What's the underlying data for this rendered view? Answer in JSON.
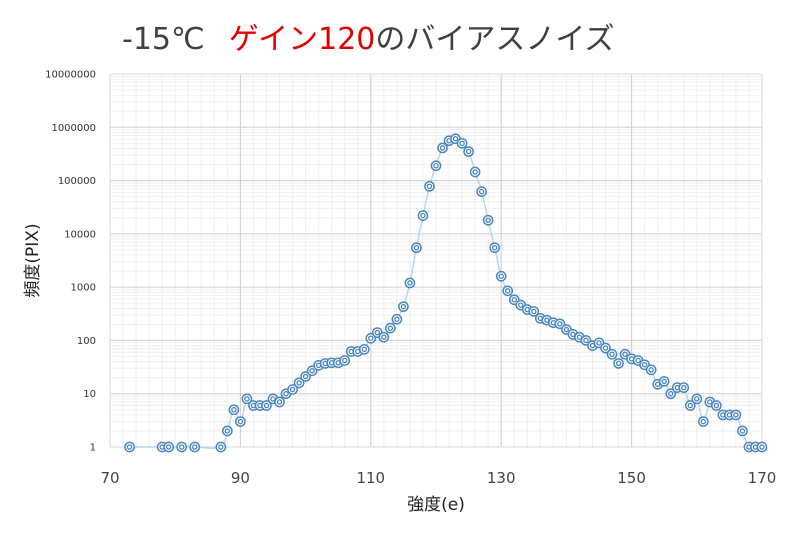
{
  "title": {
    "prefix": "-15℃",
    "highlight": "ゲイン120",
    "suffix": "のバイアスノイズ"
  },
  "chart_data": {
    "type": "scatter",
    "xlabel": "強度(e)",
    "ylabel": "頻度(PIX)",
    "xlim": [
      70,
      170
    ],
    "ylim": [
      1,
      10000000
    ],
    "yscale": "log",
    "grid": true,
    "marker": "double-circle",
    "line": "smoothed",
    "x_ticks": [
      "70",
      "90",
      "110",
      "130",
      "150",
      "170"
    ],
    "y_ticks": [
      "1",
      "10",
      "100",
      "1000",
      "10000",
      "100000",
      "1000000",
      "10000000"
    ],
    "series": [
      {
        "color": "#4a86c0",
        "points": [
          [
            73,
            1
          ],
          [
            78,
            1
          ],
          [
            79,
            1
          ],
          [
            81,
            1
          ],
          [
            83,
            1
          ],
          [
            87,
            1
          ],
          [
            88,
            2
          ],
          [
            89,
            5
          ],
          [
            90,
            3
          ],
          [
            91,
            8
          ],
          [
            92,
            6
          ],
          [
            93,
            6
          ],
          [
            94,
            6
          ],
          [
            95,
            8
          ],
          [
            96,
            7
          ],
          [
            97,
            10
          ],
          [
            98,
            12
          ],
          [
            99,
            16
          ],
          [
            100,
            21
          ],
          [
            101,
            27
          ],
          [
            102,
            34
          ],
          [
            103,
            37
          ],
          [
            104,
            38
          ],
          [
            105,
            38
          ],
          [
            106,
            42
          ],
          [
            107,
            62
          ],
          [
            108,
            62
          ],
          [
            109,
            68
          ],
          [
            110,
            110
          ],
          [
            111,
            140
          ],
          [
            112,
            115
          ],
          [
            113,
            170
          ],
          [
            114,
            250
          ],
          [
            115,
            430
          ],
          [
            116,
            1200
          ],
          [
            117,
            5500
          ],
          [
            118,
            22000
          ],
          [
            119,
            78000
          ],
          [
            120,
            190000
          ],
          [
            121,
            410000
          ],
          [
            122,
            560000
          ],
          [
            123,
            610000
          ],
          [
            124,
            500000
          ],
          [
            125,
            350000
          ],
          [
            126,
            145000
          ],
          [
            127,
            62000
          ],
          [
            128,
            18000
          ],
          [
            129,
            5500
          ],
          [
            130,
            1600
          ],
          [
            131,
            850
          ],
          [
            132,
            580
          ],
          [
            133,
            460
          ],
          [
            134,
            380
          ],
          [
            135,
            350
          ],
          [
            136,
            260
          ],
          [
            137,
            240
          ],
          [
            138,
            215
          ],
          [
            139,
            205
          ],
          [
            140,
            160
          ],
          [
            141,
            130
          ],
          [
            142,
            115
          ],
          [
            143,
            100
          ],
          [
            144,
            80
          ],
          [
            145,
            90
          ],
          [
            146,
            72
          ],
          [
            147,
            55
          ],
          [
            148,
            37
          ],
          [
            149,
            55
          ],
          [
            150,
            45
          ],
          [
            151,
            42
          ],
          [
            152,
            35
          ],
          [
            153,
            28
          ],
          [
            154,
            15
          ],
          [
            155,
            17
          ],
          [
            156,
            10
          ],
          [
            157,
            13
          ],
          [
            158,
            13
          ],
          [
            159,
            6
          ],
          [
            160,
            8
          ],
          [
            161,
            3
          ],
          [
            162,
            7
          ],
          [
            163,
            6
          ],
          [
            164,
            4
          ],
          [
            165,
            4
          ],
          [
            166,
            4
          ],
          [
            167,
            2
          ],
          [
            168,
            1
          ],
          [
            169,
            1
          ],
          [
            170,
            1
          ]
        ]
      }
    ]
  }
}
